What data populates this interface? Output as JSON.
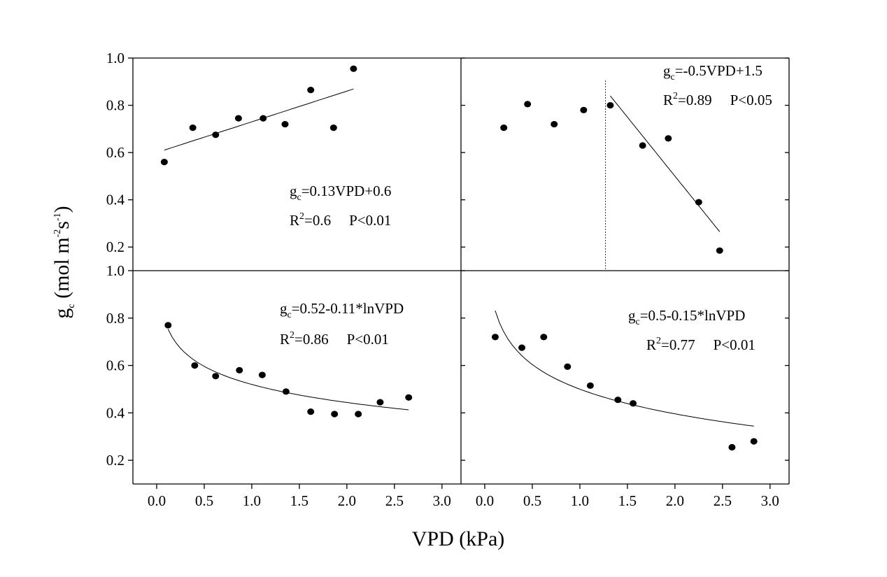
{
  "chart_data": {
    "type": "scatter",
    "xlabel": "VPD (kPa)",
    "ylabel": {
      "base": "g",
      "sub": "c",
      "unit_a": " (mol m",
      "sup_a": "-2",
      "unit_b": "s",
      "sup_b": "-1",
      "close": ")"
    },
    "x_ticks": [
      "0.0",
      "0.5",
      "1.0",
      "1.5",
      "2.0",
      "2.5",
      "3.0"
    ],
    "xlim": [
      -0.25,
      3.2
    ],
    "panels": [
      {
        "id": "top-left",
        "ylim": [
          0.1,
          1.0
        ],
        "y_ticks": [
          "0.2",
          "0.4",
          "0.6",
          "0.8",
          "1.0"
        ],
        "points": [
          [
            0.08,
            0.56
          ],
          [
            0.38,
            0.705
          ],
          [
            0.62,
            0.675
          ],
          [
            0.86,
            0.745
          ],
          [
            1.12,
            0.745
          ],
          [
            1.35,
            0.72
          ],
          [
            1.62,
            0.865
          ],
          [
            1.86,
            0.705
          ],
          [
            2.07,
            0.955
          ]
        ],
        "fit": {
          "kind": "linear",
          "a": 0.6,
          "b": 0.13,
          "x_range": [
            0.08,
            2.07
          ]
        },
        "equation": {
          "g": "g",
          "sub": "c",
          "rest": "=0.13VPD+0.6"
        },
        "stats": {
          "r": "R",
          "sup": "2",
          "rest": "=0.6",
          "p": "P<0.01"
        }
      },
      {
        "id": "top-right",
        "ylim": [
          0.1,
          1.0
        ],
        "y_ticks": [],
        "points": [
          [
            0.2,
            0.705
          ],
          [
            0.45,
            0.805
          ],
          [
            0.73,
            0.72
          ],
          [
            1.04,
            0.78
          ],
          [
            1.32,
            0.8
          ],
          [
            1.66,
            0.63
          ],
          [
            1.93,
            0.66
          ],
          [
            2.25,
            0.39
          ],
          [
            2.47,
            0.185
          ]
        ],
        "fit": {
          "kind": "linear",
          "a": 1.5,
          "b": -0.5,
          "x_range": [
            1.32,
            2.47
          ]
        },
        "threshold": 1.27,
        "equation": {
          "g": "g",
          "sub": "c",
          "rest": "=-0.5VPD+1.5"
        },
        "stats": {
          "r": "R",
          "sup": "2",
          "rest": "=0.89",
          "p": "P<0.05"
        }
      },
      {
        "id": "bottom-left",
        "ylim": [
          0.1,
          1.0
        ],
        "y_ticks": [
          "0.2",
          "0.4",
          "0.6",
          "0.8",
          "1.0"
        ],
        "points": [
          [
            0.12,
            0.77
          ],
          [
            0.4,
            0.6
          ],
          [
            0.62,
            0.555
          ],
          [
            0.87,
            0.58
          ],
          [
            1.11,
            0.56
          ],
          [
            1.36,
            0.49
          ],
          [
            1.62,
            0.405
          ],
          [
            1.87,
            0.395
          ],
          [
            2.12,
            0.395
          ],
          [
            2.35,
            0.445
          ],
          [
            2.65,
            0.465
          ]
        ],
        "fit": {
          "kind": "log",
          "a": 0.52,
          "b": -0.11,
          "x_range": [
            0.12,
            2.65
          ]
        },
        "equation": {
          "g": "g",
          "sub": "c",
          "rest": "=0.52-0.11*lnVPD"
        },
        "stats": {
          "r": "R",
          "sup": "2",
          "rest": "=0.86",
          "p": "P<0.01"
        }
      },
      {
        "id": "bottom-right",
        "ylim": [
          0.1,
          1.0
        ],
        "y_ticks": [],
        "points": [
          [
            0.11,
            0.72
          ],
          [
            0.39,
            0.675
          ],
          [
            0.62,
            0.72
          ],
          [
            0.87,
            0.595
          ],
          [
            1.11,
            0.515
          ],
          [
            1.4,
            0.455
          ],
          [
            1.56,
            0.44
          ],
          [
            2.6,
            0.255
          ],
          [
            2.83,
            0.28
          ]
        ],
        "fit": {
          "kind": "log",
          "a": 0.5,
          "b": -0.15,
          "x_range": [
            0.11,
            2.83
          ]
        },
        "equation": {
          "g": "g",
          "sub": "c",
          "rest": "=0.5-0.15*lnVPD"
        },
        "stats": {
          "r": "R",
          "sup": "2",
          "rest": "=0.77",
          "p": "P<0.01"
        }
      }
    ]
  }
}
